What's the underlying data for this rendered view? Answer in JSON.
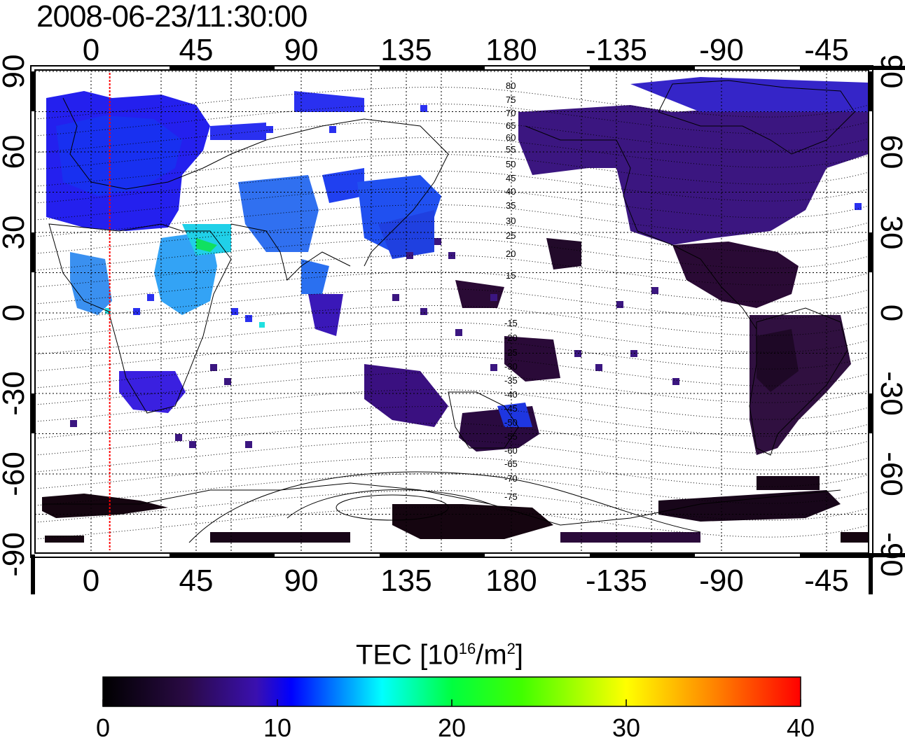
{
  "title": "2008-06-23/11:30:00",
  "map": {
    "top_tick_labels": [
      "0",
      "45",
      "90",
      "135",
      "180",
      "-135",
      "-90",
      "-45"
    ],
    "bottom_tick_labels": [
      "0",
      "45",
      "90",
      "135",
      "180",
      "-135",
      "-90",
      "-45"
    ],
    "left_tick_labels": [
      "90",
      "60",
      "30",
      "0",
      "-30",
      "-60",
      "-90"
    ],
    "right_tick_labels": [
      "90",
      "60",
      "30",
      "0",
      "-30",
      "-60",
      "-90"
    ],
    "contour_labels_north": [
      "80",
      "75",
      "70",
      "65",
      "60",
      "55",
      "50",
      "45",
      "40",
      "35",
      "30",
      "25",
      "20",
      "15"
    ],
    "contour_labels_south": [
      "-15",
      "-20",
      "-25",
      "-30",
      "-35",
      "-40",
      "-45",
      "-50",
      "-55",
      "-60",
      "-65",
      "-70",
      "-75"
    ],
    "terminator_color": "#ff0000",
    "terminator_longitude": 8
  },
  "colorbar": {
    "title": "TEC  [10",
    "title_exp1": "16",
    "title_mid": "/m",
    "title_exp2": "2",
    "title_end": "]",
    "tick_labels": [
      "0",
      "10",
      "20",
      "30",
      "40"
    ],
    "range": [
      0,
      40
    ],
    "colors": [
      "#000000",
      "#3a0a5a",
      "#0000ff",
      "#00ffff",
      "#00ff00",
      "#ffff00",
      "#ff8000",
      "#ff0000"
    ]
  }
}
